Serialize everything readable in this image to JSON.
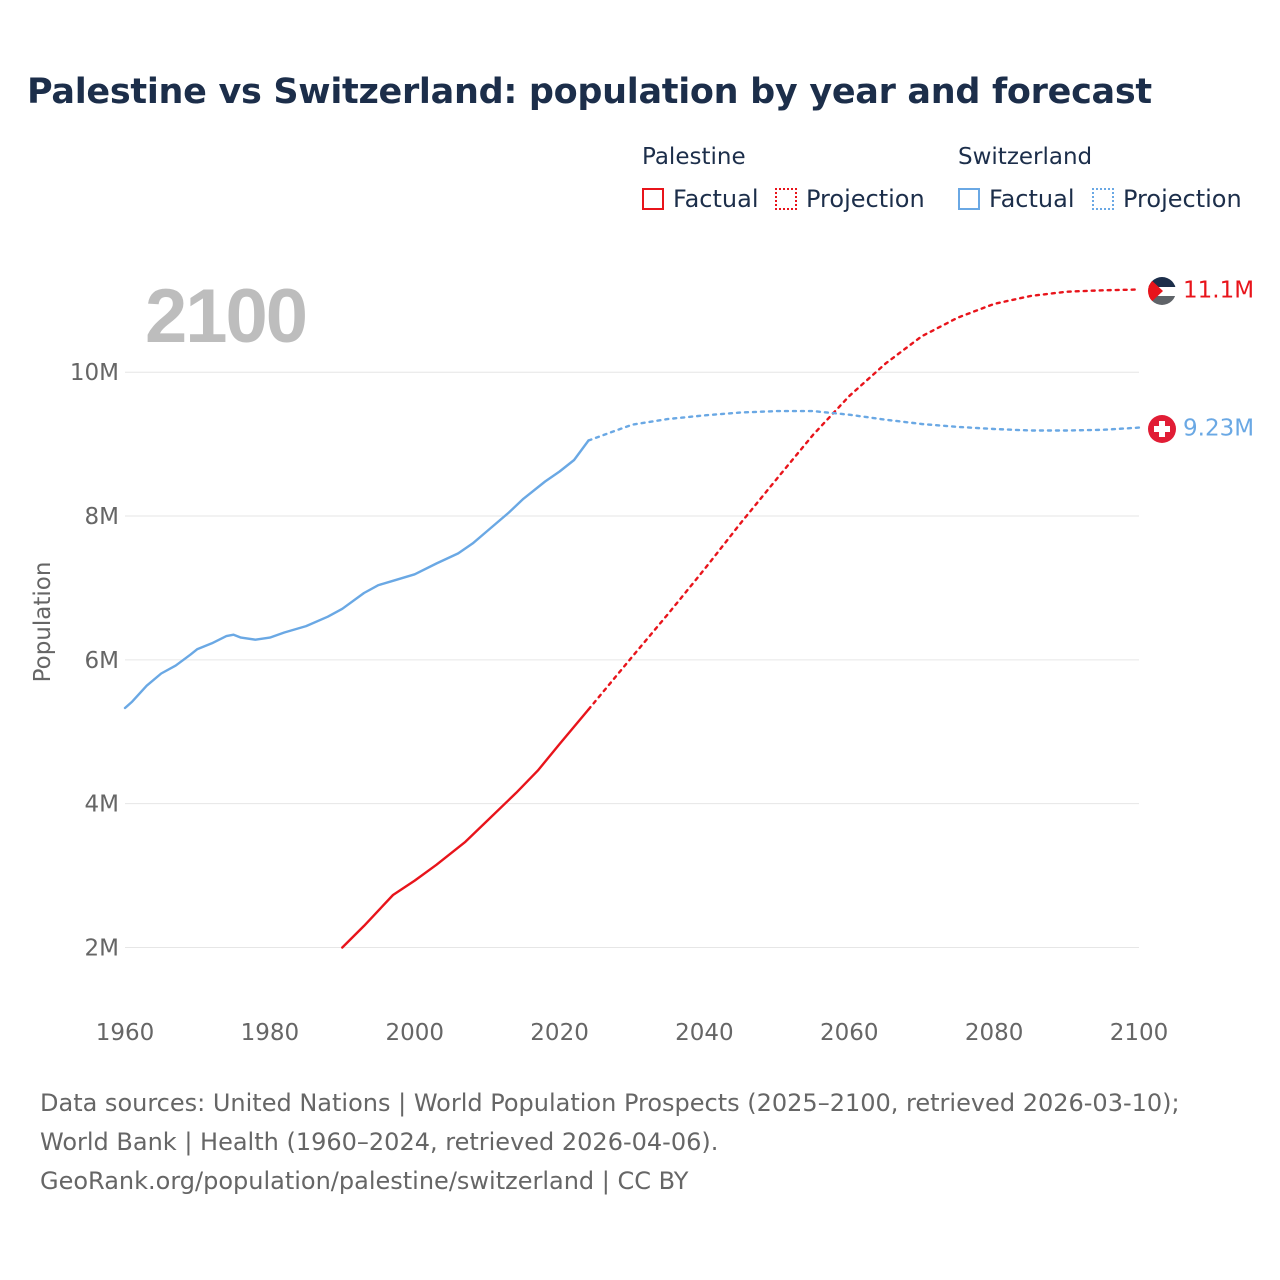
{
  "title": "Palestine vs Switzerland: population by year and forecast",
  "legend": {
    "groups": [
      {
        "name": "Palestine",
        "factual_label": "Factual",
        "projection_label": "Projection",
        "color": "#e8141b"
      },
      {
        "name": "Switzerland",
        "factual_label": "Factual",
        "projection_label": "Projection",
        "color": "#6aa8e4"
      }
    ]
  },
  "year_overlay": "2100",
  "chart_data": {
    "type": "line",
    "title": "Palestine vs Switzerland: population by year and forecast",
    "xlabel": "",
    "ylabel": "Population",
    "xlim": [
      1960,
      2100
    ],
    "ylim": [
      1200000,
      11700000
    ],
    "x_ticks": [
      1960,
      1980,
      2000,
      2020,
      2040,
      2060,
      2080,
      2100
    ],
    "x_tick_labels": [
      "1960",
      "1980",
      "2000",
      "2020",
      "2040",
      "2060",
      "2080",
      "2100"
    ],
    "y_ticks": [
      2000000,
      4000000,
      6000000,
      8000000,
      10000000
    ],
    "y_tick_labels": [
      "2M",
      "4M",
      "6M",
      "8M",
      "10M"
    ],
    "grid": true,
    "series": [
      {
        "name": "Palestine",
        "color": "#e8141b",
        "end_label": "11.1M",
        "flag": "palestine-flag",
        "factual": {
          "x": [
            1990,
            1993,
            1997,
            2000,
            2003,
            2007,
            2010,
            2014,
            2017,
            2020,
            2024
          ],
          "y": [
            2000000,
            2300000,
            2730000,
            2930000,
            3150000,
            3470000,
            3760000,
            4150000,
            4460000,
            4830000,
            5310000
          ]
        },
        "projection": {
          "x": [
            2024,
            2030,
            2035,
            2040,
            2045,
            2050,
            2055,
            2060,
            2065,
            2070,
            2075,
            2080,
            2085,
            2090,
            2095,
            2100
          ],
          "y": [
            5310000,
            6040000,
            6640000,
            7260000,
            7900000,
            8520000,
            9130000,
            9670000,
            10120000,
            10500000,
            10760000,
            10950000,
            11060000,
            11120000,
            11140000,
            11150000
          ]
        }
      },
      {
        "name": "Switzerland",
        "color": "#6aa8e4",
        "end_label": "9.23M",
        "flag": "switzerland-flag",
        "factual": {
          "x": [
            1960,
            1961,
            1963,
            1965,
            1967,
            1969,
            1970,
            1972,
            1974,
            1975,
            1976,
            1978,
            1980,
            1982,
            1985,
            1988,
            1990,
            1993,
            1995,
            1997,
            2000,
            2003,
            2006,
            2008,
            2010,
            2013,
            2015,
            2018,
            2020,
            2022,
            2024
          ],
          "y": [
            5330000,
            5420000,
            5640000,
            5810000,
            5920000,
            6070000,
            6150000,
            6230000,
            6330000,
            6350000,
            6310000,
            6280000,
            6310000,
            6380000,
            6470000,
            6600000,
            6710000,
            6930000,
            7040000,
            7100000,
            7190000,
            7340000,
            7480000,
            7620000,
            7790000,
            8050000,
            8240000,
            8480000,
            8620000,
            8780000,
            9050000
          ]
        },
        "projection": {
          "x": [
            2024,
            2030,
            2035,
            2040,
            2045,
            2050,
            2055,
            2060,
            2065,
            2070,
            2075,
            2080,
            2085,
            2090,
            2095,
            2100
          ],
          "y": [
            9050000,
            9270000,
            9350000,
            9400000,
            9440000,
            9460000,
            9460000,
            9410000,
            9340000,
            9280000,
            9240000,
            9210000,
            9190000,
            9190000,
            9200000,
            9230000
          ]
        }
      }
    ]
  },
  "footer": {
    "sources": "Data sources: United Nations | World Population Prospects (2025–2100, retrieved 2026-03-10); World Bank | Health (1960–2024, retrieved 2026-04-06).",
    "credit": "GeoRank.org/population/palestine/switzerland | CC BY"
  }
}
